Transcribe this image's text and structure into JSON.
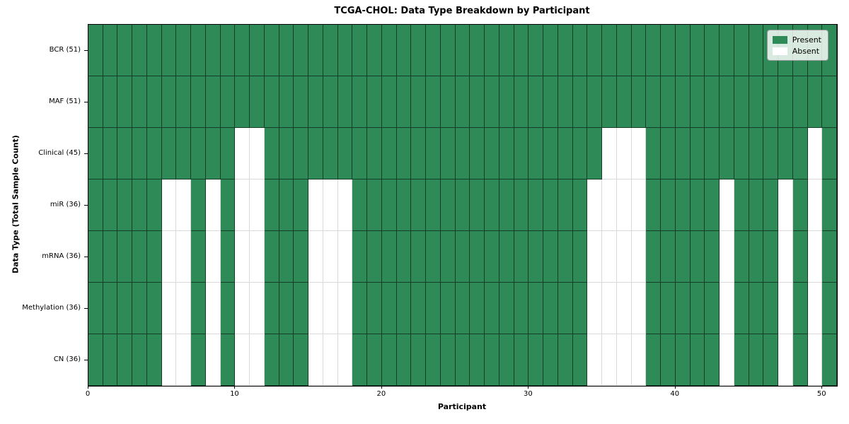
{
  "chart_data": {
    "type": "heatmap",
    "title": "TCGA-CHOL: Data Type Breakdown by Participant",
    "xlabel": "Participant",
    "ylabel": "Data Type (Total Sample Count)",
    "n_participants": 51,
    "x_ticks": [
      0,
      10,
      20,
      30,
      40,
      50
    ],
    "grid": true,
    "legend_position": "upper right",
    "colors": {
      "present": "#2e8b57",
      "absent": "#ffffff",
      "grid_line_on_present": "rgba(0,0,0,0.55)",
      "grid_line_on_absent": "rgba(0,0,0,0.15)",
      "axis": "#000000"
    },
    "legend": [
      {
        "label": "Present",
        "color": "#2e8b57"
      },
      {
        "label": "Absent",
        "color": "#ffffff"
      }
    ],
    "rows": [
      {
        "label": "BCR (51)",
        "absent_participants": []
      },
      {
        "label": "MAF (51)",
        "absent_participants": []
      },
      {
        "label": "Clinical (45)",
        "absent_participants": [
          10,
          11,
          35,
          36,
          37,
          49
        ]
      },
      {
        "label": "miR (36)",
        "absent_participants": [
          5,
          6,
          8,
          10,
          11,
          15,
          16,
          17,
          34,
          35,
          36,
          37,
          43,
          47,
          49
        ]
      },
      {
        "label": "mRNA (36)",
        "absent_participants": [
          5,
          6,
          8,
          10,
          11,
          15,
          16,
          17,
          34,
          35,
          36,
          37,
          43,
          47,
          49
        ]
      },
      {
        "label": "Methylation (36)",
        "absent_participants": [
          5,
          6,
          8,
          10,
          11,
          15,
          16,
          17,
          34,
          35,
          36,
          37,
          43,
          47,
          49
        ]
      },
      {
        "label": "CN (36)",
        "absent_participants": [
          5,
          6,
          8,
          10,
          11,
          15,
          16,
          17,
          34,
          35,
          36,
          37,
          43,
          47,
          49
        ]
      }
    ]
  }
}
